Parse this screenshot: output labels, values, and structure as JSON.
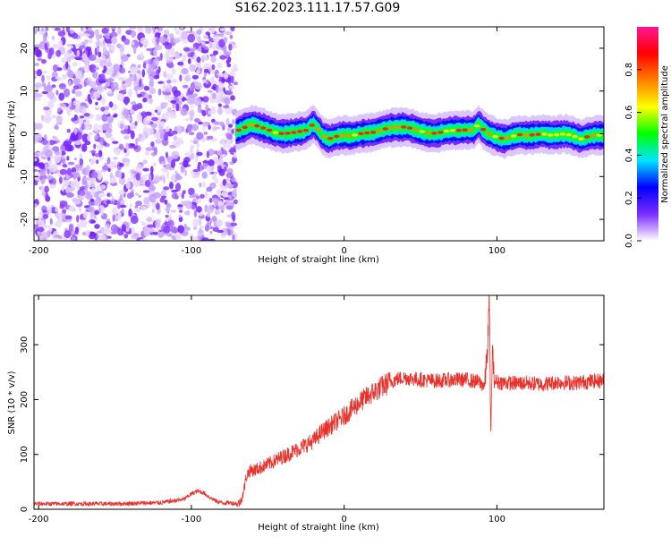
{
  "title": "S162.2023.111.17.57.G09",
  "chart_data": [
    {
      "type": "heatmap",
      "xlabel": "Height of straight line (km)",
      "ylabel": "Frequency (Hz)",
      "xlim": [
        -203,
        170
      ],
      "ylim": [
        -25,
        25
      ],
      "xticks": [
        -200,
        -100,
        0,
        100
      ],
      "yticks": [
        -20,
        -10,
        0,
        10,
        20
      ],
      "colorbar": {
        "label": "Normalized spectral amplitude",
        "range": [
          0,
          1
        ],
        "ticks": [
          0.0,
          0.2,
          0.4,
          0.6,
          0.8
        ],
        "colors": [
          "#ffffff",
          "#7a2cff",
          "#0000ff",
          "#00e5ff",
          "#00ff00",
          "#ffff00",
          "#ff8000",
          "#ff0000",
          "#ff1493"
        ]
      },
      "noise_region_x": [
        -203,
        -71
      ],
      "trace": {
        "x": [
          -71,
          -65,
          -60,
          -55,
          -50,
          -45,
          -40,
          -35,
          -30,
          -25,
          -20,
          -17,
          -14,
          -10,
          -5,
          0,
          5,
          10,
          15,
          20,
          25,
          30,
          35,
          40,
          45,
          50,
          55,
          60,
          65,
          70,
          75,
          80,
          85,
          88,
          91,
          94,
          100,
          105,
          110,
          115,
          120,
          125,
          130,
          135,
          140,
          145,
          150,
          155,
          160,
          165,
          170
        ],
        "y": [
          0.5,
          1.5,
          2.2,
          1.6,
          1.0,
          0.3,
          0.0,
          0.2,
          0.5,
          0.8,
          2.3,
          1.0,
          -0.5,
          -1.2,
          -0.6,
          -0.3,
          -0.5,
          0.0,
          0.2,
          0.4,
          1.0,
          1.4,
          1.5,
          1.6,
          1.2,
          0.6,
          0.2,
          0.1,
          0.5,
          0.8,
          0.8,
          0.9,
          0.9,
          2.3,
          1.0,
          0.2,
          -0.8,
          -1.2,
          -0.6,
          -0.2,
          -0.4,
          -0.2,
          0.0,
          -0.3,
          -0.2,
          0.0,
          -0.5,
          -1.2,
          -0.6,
          -0.3,
          -0.4
        ]
      }
    },
    {
      "type": "line",
      "xlabel": "Height of straight line (km)",
      "ylabel": "SNR (10 * v/v)",
      "xlim": [
        -203,
        170
      ],
      "ylim": [
        0,
        390
      ],
      "xticks": [
        -200,
        -100,
        0,
        100
      ],
      "yticks": [
        0,
        100,
        200,
        300
      ],
      "series": [
        {
          "color": "#e8322c",
          "x": [
            -203,
            -180,
            -150,
            -120,
            -105,
            -100,
            -96,
            -92,
            -88,
            -84,
            -80,
            -75,
            -70,
            -68,
            -66,
            -64,
            -62,
            -58,
            -50,
            -40,
            -30,
            -20,
            -15,
            -10,
            -5,
            0,
            10,
            20,
            30,
            35,
            40,
            50,
            60,
            70,
            80,
            88,
            92,
            94,
            95,
            96,
            97,
            98,
            100,
            110,
            120,
            130,
            140,
            150,
            160,
            170
          ],
          "y": [
            10,
            10,
            10,
            12,
            18,
            28,
            33,
            30,
            22,
            15,
            12,
            12,
            10,
            12,
            30,
            60,
            70,
            72,
            82,
            96,
            110,
            125,
            140,
            150,
            160,
            170,
            195,
            215,
            232,
            238,
            240,
            236,
            234,
            236,
            236,
            232,
            225,
            300,
            390,
            120,
            300,
            235,
            232,
            230,
            230,
            228,
            232,
            230,
            233,
            235
          ]
        }
      ]
    }
  ]
}
